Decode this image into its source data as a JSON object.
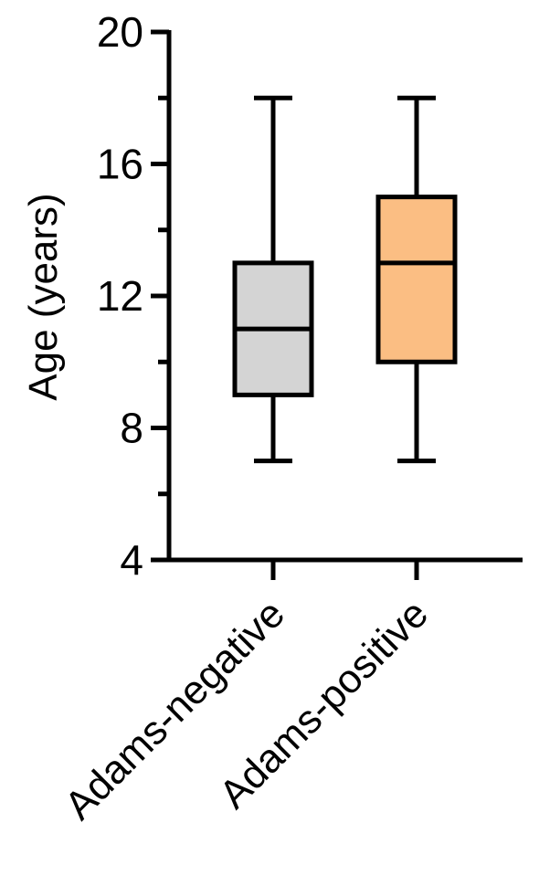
{
  "chart_data": {
    "type": "box",
    "ylabel": "Age (years)",
    "ylim": [
      4,
      20
    ],
    "yticks": [
      4,
      8,
      12,
      16,
      20
    ],
    "y_minor_ticks": [
      6,
      10,
      14,
      18
    ],
    "categories": [
      "Adams-negative",
      "Adams-positive"
    ],
    "boxes": [
      {
        "category": "Adams-negative",
        "min": 7,
        "q1": 9,
        "median": 11,
        "q3": 13,
        "max": 18,
        "color": "#d4d4d4"
      },
      {
        "category": "Adams-positive",
        "min": 7,
        "q1": 10,
        "median": 13,
        "q3": 15,
        "max": 18,
        "color": "#fbbe83"
      }
    ],
    "grid": false
  }
}
